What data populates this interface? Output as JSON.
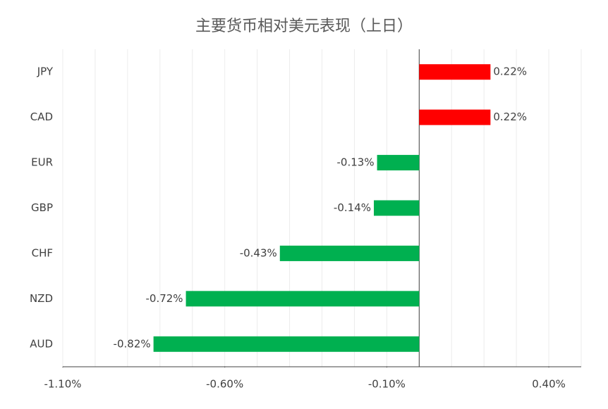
{
  "chart_data": {
    "type": "barh",
    "title": "主要货币相对美元表现（上日）",
    "categories": [
      "JPY",
      "CAD",
      "EUR",
      "GBP",
      "CHF",
      "NZD",
      "AUD"
    ],
    "values": [
      0.22,
      0.22,
      -0.13,
      -0.14,
      -0.43,
      -0.72,
      -0.82
    ],
    "value_labels": [
      "0.22%",
      "0.22%",
      "-0.13%",
      "-0.14%",
      "-0.43%",
      "-0.72%",
      "-0.82%"
    ],
    "colors": [
      "#ff0000",
      "#ff0000",
      "#00b050",
      "#00b050",
      "#00b050",
      "#00b050",
      "#00b050"
    ],
    "xlim": [
      -1.1,
      0.5
    ],
    "xticks": [
      {
        "value": -1.1,
        "label": "-1.10%"
      },
      {
        "value": -0.6,
        "label": "-0.60%"
      },
      {
        "value": -0.1,
        "label": "-0.10%"
      },
      {
        "value": 0.4,
        "label": "0.40%"
      }
    ],
    "grid_x": [
      -1.1,
      -1.0,
      -0.9,
      -0.8,
      -0.7,
      -0.6,
      -0.5,
      -0.4,
      -0.3,
      -0.2,
      -0.1,
      0.0,
      0.1,
      0.2,
      0.3,
      0.4,
      0.5
    ],
    "grid": true
  }
}
